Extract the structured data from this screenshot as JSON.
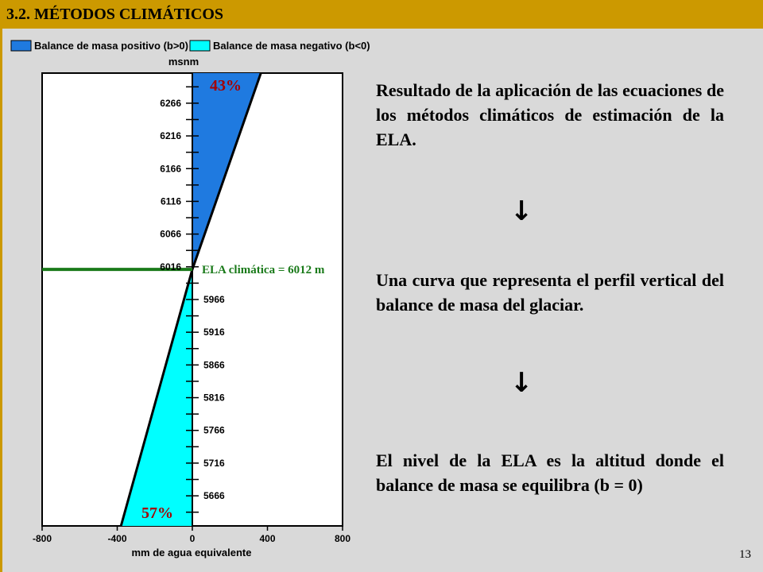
{
  "header": {
    "title": "3.2. MÉTODOS CLIMÁTICOS",
    "bar_color": "#cc9900"
  },
  "chart_data": {
    "type": "area",
    "legend": [
      {
        "label": "Balance de masa positivo (b>0)",
        "color": "#1f7ae0"
      },
      {
        "label": "Balance de masa negativo (b<0)",
        "color": "#00ffff"
      }
    ],
    "legend_position": "top",
    "ylabel": "msnm",
    "xlabel": "mm de agua equivalente",
    "xlim": [
      -800,
      800
    ],
    "x_ticks": [
      "-800",
      "-400",
      "0",
      "400",
      "800"
    ],
    "x_tick_values": [
      -800,
      -400,
      0,
      400,
      800
    ],
    "ylim": [
      5620,
      6312
    ],
    "y_ticks": [
      "6266",
      "6216",
      "6166",
      "6116",
      "6066",
      "6016",
      "5966",
      "5916",
      "5866",
      "5816",
      "5766",
      "5716",
      "5666"
    ],
    "y_tick_values": [
      6266,
      6216,
      6166,
      6116,
      6066,
      6016,
      5966,
      5916,
      5866,
      5816,
      5766,
      5716,
      5666
    ],
    "profile": [
      {
        "x": -380,
        "y": 5620
      },
      {
        "x": 0,
        "y": 6012
      },
      {
        "x": 365,
        "y": 6312
      }
    ],
    "ela": {
      "altitude": 6012,
      "label": "ELA climática = 6012 m",
      "color": "#1a7a1a"
    },
    "annotations": [
      {
        "text": "43%",
        "region": "positive"
      },
      {
        "text": "57%",
        "region": "negative"
      }
    ],
    "grid": false
  },
  "text": {
    "p1": "Resultado de la aplicación de las ecuaciones de los métodos climáticos de estimación de la ELA.",
    "p2": "Una curva que representa el perfil vertical del balance de masa del glaciar.",
    "p3": "El nivel de la ELA es la altitud donde el balance de masa se equilibra (b = 0)"
  },
  "arrows": {
    "glyph": "↓",
    "icon": "arrow-down-icon"
  },
  "page_number": "13"
}
